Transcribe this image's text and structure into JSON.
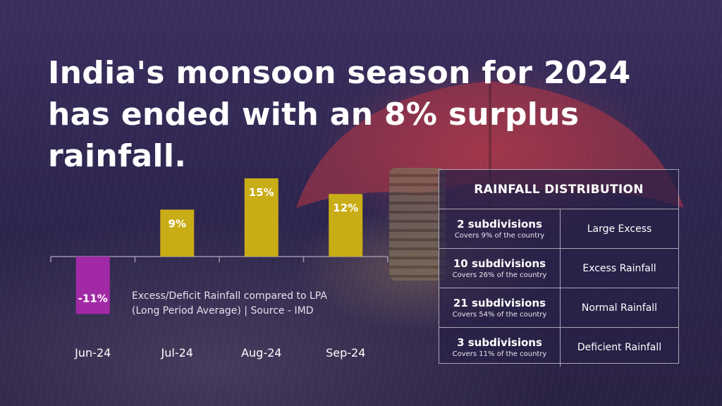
{
  "headline": "India's monsoon season for 2024 has ended with an 8% surplus rainfall.",
  "chart_data": {
    "type": "bar",
    "categories": [
      "Jun-24",
      "Jul-24",
      "Aug-24",
      "Sep-24"
    ],
    "values": [
      -11,
      9,
      15,
      12
    ],
    "value_labels": [
      "-11%",
      "9%",
      "15%",
      "12%"
    ],
    "note_lines": [
      "Excess/Deficit Rainfall compared to LPA",
      "(Long Period Average) | Source - IMD"
    ],
    "bar_colors": {
      "positive": "#c9ad16",
      "negative": "#a229a6"
    },
    "axis_color": "#9a92ad",
    "ylim": [
      -11,
      15
    ]
  },
  "distribution": {
    "title": "RAINFALL DISTRIBUTION",
    "rows": [
      {
        "count": "2 subdivisions",
        "coverage": "Covers 9% of the country",
        "category": "Large Excess"
      },
      {
        "count": "10 subdivisions",
        "coverage": "Covers 26% of the country",
        "category": "Excess Rainfall"
      },
      {
        "count": "21 subdivisions",
        "coverage": "Covers 54% of the country",
        "category": "Normal Rainfall"
      },
      {
        "count": "3 subdivisions",
        "coverage": "Covers 11% of the country",
        "category": "Deficient Rainfall"
      }
    ]
  }
}
